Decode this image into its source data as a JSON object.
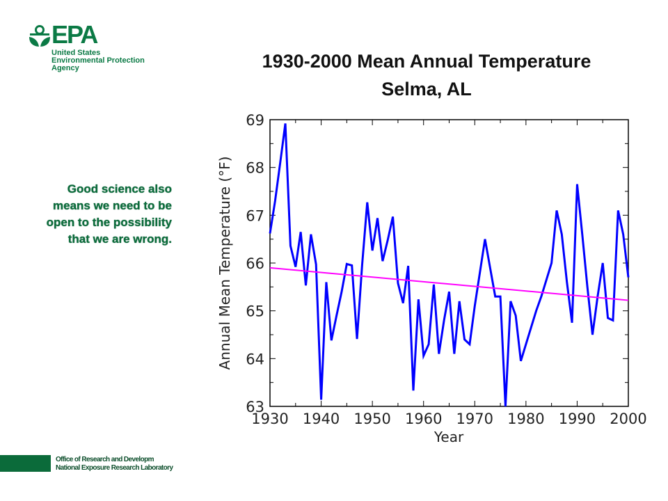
{
  "logo": {
    "word": "EPA",
    "line1": "United States",
    "line2": "Environmental Protection",
    "line3": "Agency",
    "color": "#0b7a45"
  },
  "slide": {
    "title_line1": "1930-2000 Mean Annual Temperature",
    "title_line2": "Selma, AL"
  },
  "note": {
    "text": "Good science also means we need to be open to the possibility that we are wrong."
  },
  "footer": {
    "line1": "Office of Research and Developm",
    "line2": "National Exposure Research Laboratory",
    "bar_color": "#0b6b3a"
  },
  "chart_data": {
    "type": "line",
    "title": "1930-2000 Mean Annual Temperature Selma, AL",
    "xlabel": "Year",
    "ylabel": "Annual Mean Temperature (°F)",
    "xlim": [
      1930,
      2000
    ],
    "ylim": [
      63,
      69
    ],
    "xticks": [
      1930,
      1940,
      1950,
      1960,
      1970,
      1980,
      1990,
      2000
    ],
    "yticks": [
      63,
      64,
      65,
      66,
      67,
      68,
      69
    ],
    "grid": false,
    "series": [
      {
        "color": "#0000ff",
        "x": [
          1930,
          1931,
          1932,
          1933,
          1934,
          1935,
          1936,
          1937,
          1938,
          1939,
          1940,
          1941,
          1942,
          1943,
          1944,
          1945,
          1946,
          1947,
          1948,
          1949,
          1950,
          1951,
          1952,
          1953,
          1954,
          1955,
          1956,
          1957,
          1958,
          1959,
          1960,
          1961,
          1962,
          1963,
          1964,
          1965,
          1966,
          1967,
          1968,
          1969,
          1970,
          1971,
          1972,
          1973,
          1974,
          1975,
          1976,
          1977,
          1978,
          1979,
          1980,
          1981,
          1982,
          1983,
          1984,
          1985,
          1986,
          1987,
          1988,
          1989,
          1990,
          1991,
          1992,
          1993,
          1994,
          1995,
          1996,
          1997,
          1998,
          1999,
          2000
        ],
        "y": [
          66.62,
          67.3,
          68.1,
          68.92,
          66.36,
          65.92,
          66.65,
          65.53,
          66.6,
          65.97,
          63.14,
          65.6,
          64.38,
          64.9,
          65.4,
          65.98,
          65.95,
          64.41,
          65.96,
          67.27,
          66.26,
          66.94,
          66.04,
          66.48,
          66.97,
          65.58,
          65.16,
          65.94,
          63.33,
          65.24,
          64.06,
          64.3,
          65.55,
          64.1,
          64.8,
          65.4,
          64.1,
          65.2,
          64.4,
          64.3,
          65.1,
          65.8,
          66.5,
          65.9,
          65.3,
          65.3,
          63.0,
          65.2,
          64.9,
          63.95,
          64.3,
          64.65,
          65.0,
          65.3,
          65.65,
          66.0,
          67.1,
          66.6,
          65.6,
          64.75,
          67.65,
          66.6,
          65.5,
          64.5,
          65.3,
          66.0,
          64.85,
          64.8,
          67.1,
          66.6,
          65.7
        ]
      },
      {
        "color": "#ff00ff",
        "type": "trend",
        "x": [
          1930,
          2000
        ],
        "y": [
          65.9,
          65.22
        ]
      }
    ]
  }
}
